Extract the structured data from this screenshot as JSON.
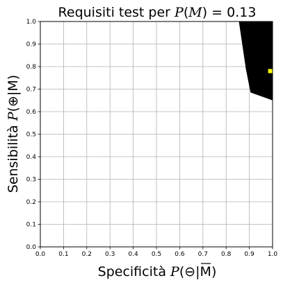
{
  "chart_data": {
    "type": "area",
    "title": {
      "prefix": "Requisiti test per ",
      "math_var": "P",
      "math_open": "(",
      "math_arg": "M",
      "math_close": ")",
      "math_eq": " = 0.13"
    },
    "xlabel": {
      "text": "Specificità ",
      "math_var": "P",
      "math_arg": "(⊖|M)",
      "overline_on": "M"
    },
    "ylabel": {
      "text": "Sensibilità ",
      "math_var": "P",
      "math_arg": "(⊕|M)"
    },
    "xlim": [
      0.0,
      1.0
    ],
    "ylim": [
      0.0,
      1.0
    ],
    "xticks": [
      "0.0",
      "0.1",
      "0.2",
      "0.3",
      "0.4",
      "0.5",
      "0.6",
      "0.7",
      "0.8",
      "0.9",
      "1.0"
    ],
    "yticks": [
      "0.0",
      "0.1",
      "0.2",
      "0.3",
      "0.4",
      "0.5",
      "0.6",
      "0.7",
      "0.8",
      "0.9",
      "1.0"
    ],
    "grid": true,
    "region": {
      "color": "#000000",
      "points": [
        [
          0.855,
          1.0
        ],
        [
          1.0,
          1.0
        ],
        [
          1.0,
          0.65
        ],
        [
          0.905,
          0.685
        ],
        [
          0.885,
          0.79
        ]
      ]
    },
    "marker": {
      "color": "#ffff00",
      "x": 0.99,
      "y": 0.78
    }
  }
}
